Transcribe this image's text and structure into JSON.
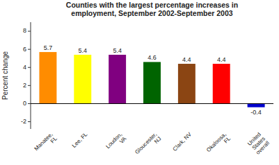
{
  "chart_data": {
    "type": "bar",
    "title": "Counties with the largest percentage increases in\nemployment, September 2002-September 2003",
    "ylabel": "Percent change",
    "categories": [
      "Manatee,\nFL",
      "Lee, FL",
      "Loudon,\nVA",
      "Gloucester,\nNJ",
      "Clark, NV",
      "Okaloosa,\nFL",
      "United\nStates\noverall"
    ],
    "values": [
      5.7,
      5.4,
      5.4,
      4.6,
      4.4,
      4.4,
      -0.4
    ],
    "colors": [
      "#FF8C00",
      "#FFFF00",
      "#800080",
      "#006400",
      "#8B4513",
      "#FF0000",
      "#0000CD"
    ],
    "ylim": [
      -2.8,
      9.0
    ],
    "yticks": [
      -2,
      0,
      2,
      4,
      6,
      8
    ],
    "data_labels": true,
    "grid": false
  }
}
